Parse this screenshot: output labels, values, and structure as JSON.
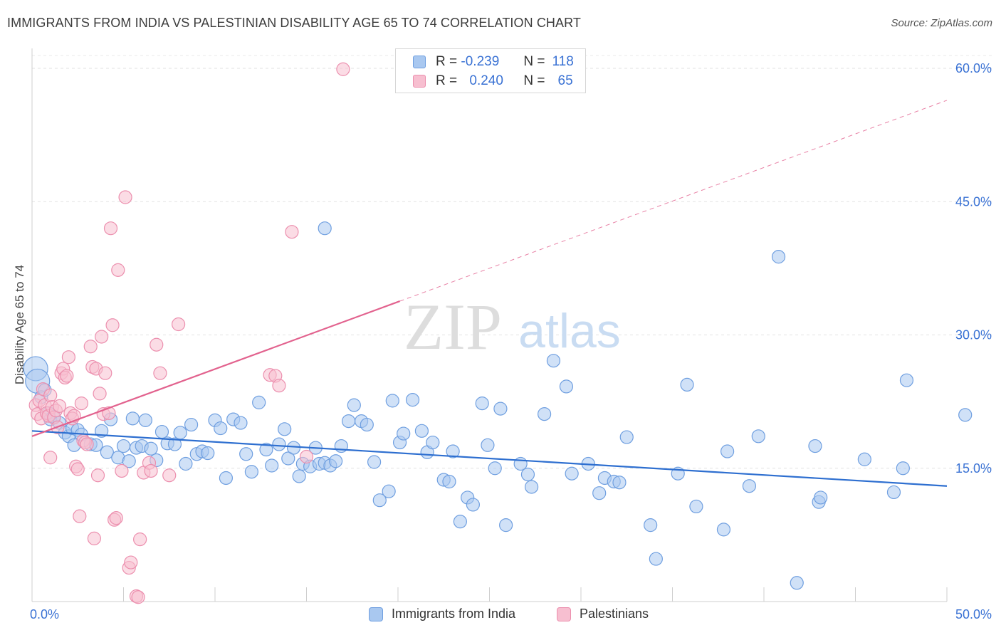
{
  "title": "IMMIGRANTS FROM INDIA VS PALESTINIAN DISABILITY AGE 65 TO 74 CORRELATION CHART",
  "source": "Source: ZipAtlas.com",
  "watermark": {
    "zip": "ZIP",
    "atlas": "atlas"
  },
  "legend": {
    "r_label": "R =",
    "n_label": "N =",
    "rows": [
      {
        "r": "-0.239",
        "n": "118",
        "color": "#a9c8f0",
        "border": "#6f9fe0"
      },
      {
        "r": "0.240",
        "n": "65",
        "color": "#f7bfd0",
        "border": "#ec8fae"
      }
    ]
  },
  "bottom_legend": [
    {
      "label": "Immigrants from India",
      "color": "#a9c8f0",
      "border": "#6f9fe0"
    },
    {
      "label": "Palestinians",
      "color": "#f7bfd0",
      "border": "#ec8fae"
    }
  ],
  "chart_data": {
    "type": "scatter",
    "title": "IMMIGRANTS FROM INDIA VS PALESTINIAN DISABILITY AGE 65 TO 74 CORRELATION CHART",
    "xlabel": "",
    "ylabel": "Disability Age 65 to 74",
    "xlim": [
      0,
      50
    ],
    "ylim": [
      0,
      60
    ],
    "x_tick_labels": [
      "0.0%",
      "50.0%"
    ],
    "y_ticks": [
      15,
      30,
      45,
      60
    ],
    "y_tick_labels": [
      "15.0%",
      "30.0%",
      "45.0%",
      "60.0%"
    ],
    "grid": true,
    "series": [
      {
        "name": "Immigrants from India",
        "color": "#6f9fe0",
        "fill": "#a9c8f0",
        "trend": {
          "x": [
            0,
            50
          ],
          "y": [
            19.2,
            13.0
          ],
          "color": "#2e6fd0"
        },
        "points": [
          [
            0.2,
            26.2
          ],
          [
            0.3,
            24.8
          ],
          [
            0.5,
            23.0
          ],
          [
            0.7,
            23.8
          ],
          [
            0.9,
            21.2
          ],
          [
            1.0,
            20.5
          ],
          [
            1.2,
            20.8
          ],
          [
            1.5,
            20.1
          ],
          [
            1.8,
            19.0
          ],
          [
            2.0,
            18.6
          ],
          [
            2.2,
            19.5
          ],
          [
            2.3,
            17.6
          ],
          [
            2.5,
            19.3
          ],
          [
            2.7,
            18.8
          ],
          [
            3.2,
            17.7
          ],
          [
            3.5,
            17.6
          ],
          [
            3.8,
            19.2
          ],
          [
            4.1,
            16.8
          ],
          [
            4.3,
            20.5
          ],
          [
            4.7,
            16.2
          ],
          [
            5.0,
            17.5
          ],
          [
            5.3,
            15.8
          ],
          [
            5.5,
            20.6
          ],
          [
            5.7,
            17.3
          ],
          [
            6.0,
            17.5
          ],
          [
            6.2,
            20.4
          ],
          [
            6.5,
            17.2
          ],
          [
            6.8,
            15.9
          ],
          [
            7.1,
            19.1
          ],
          [
            7.4,
            17.8
          ],
          [
            7.8,
            17.7
          ],
          [
            8.1,
            19.0
          ],
          [
            8.4,
            15.5
          ],
          [
            8.7,
            19.9
          ],
          [
            9.0,
            16.6
          ],
          [
            9.3,
            16.9
          ],
          [
            9.6,
            16.7
          ],
          [
            10.0,
            20.4
          ],
          [
            10.3,
            19.5
          ],
          [
            10.6,
            13.9
          ],
          [
            11.0,
            20.5
          ],
          [
            11.4,
            20.1
          ],
          [
            11.7,
            16.6
          ],
          [
            12.0,
            14.6
          ],
          [
            12.4,
            22.4
          ],
          [
            12.8,
            17.1
          ],
          [
            13.1,
            15.3
          ],
          [
            13.5,
            17.7
          ],
          [
            13.8,
            19.4
          ],
          [
            14.0,
            16.1
          ],
          [
            14.3,
            17.3
          ],
          [
            14.6,
            14.1
          ],
          [
            14.8,
            15.5
          ],
          [
            15.2,
            15.2
          ],
          [
            15.5,
            17.3
          ],
          [
            15.7,
            15.5
          ],
          [
            16.0,
            15.6
          ],
          [
            16.3,
            15.3
          ],
          [
            16.6,
            15.8
          ],
          [
            16.9,
            17.5
          ],
          [
            17.3,
            20.3
          ],
          [
            17.6,
            22.1
          ],
          [
            18.0,
            20.3
          ],
          [
            18.3,
            19.9
          ],
          [
            18.7,
            15.7
          ],
          [
            19.0,
            11.4
          ],
          [
            19.5,
            12.4
          ],
          [
            19.7,
            22.6
          ],
          [
            20.1,
            17.9
          ],
          [
            20.3,
            18.9
          ],
          [
            20.8,
            22.7
          ],
          [
            21.3,
            19.2
          ],
          [
            21.6,
            16.8
          ],
          [
            21.9,
            17.9
          ],
          [
            22.5,
            13.7
          ],
          [
            22.8,
            13.5
          ],
          [
            23.0,
            16.9
          ],
          [
            23.4,
            9.0
          ],
          [
            23.8,
            11.7
          ],
          [
            24.1,
            10.9
          ],
          [
            24.6,
            22.3
          ],
          [
            24.9,
            17.6
          ],
          [
            25.3,
            15.0
          ],
          [
            25.6,
            21.7
          ],
          [
            25.9,
            8.6
          ],
          [
            26.7,
            15.5
          ],
          [
            27.1,
            14.3
          ],
          [
            27.3,
            12.9
          ],
          [
            28.0,
            21.1
          ],
          [
            28.5,
            27.1
          ],
          [
            29.2,
            24.2
          ],
          [
            29.5,
            14.4
          ],
          [
            30.4,
            15.5
          ],
          [
            31.0,
            12.2
          ],
          [
            31.3,
            13.9
          ],
          [
            31.8,
            13.5
          ],
          [
            32.1,
            13.4
          ],
          [
            32.5,
            18.5
          ],
          [
            33.8,
            8.6
          ],
          [
            34.1,
            4.8
          ],
          [
            35.3,
            14.4
          ],
          [
            35.8,
            24.4
          ],
          [
            36.3,
            10.7
          ],
          [
            37.8,
            8.1
          ],
          [
            38.0,
            16.9
          ],
          [
            39.2,
            13.0
          ],
          [
            39.7,
            18.6
          ],
          [
            40.8,
            38.8
          ],
          [
            41.8,
            2.1
          ],
          [
            42.8,
            17.5
          ],
          [
            43.0,
            11.2
          ],
          [
            43.1,
            11.7
          ],
          [
            45.5,
            16.0
          ],
          [
            47.1,
            12.3
          ],
          [
            47.6,
            15.0
          ],
          [
            47.8,
            24.9
          ],
          [
            51.0,
            21.0
          ],
          [
            16.0,
            42.0
          ]
        ]
      },
      {
        "name": "Palestinians",
        "color": "#ec8fae",
        "fill": "#f7bfd0",
        "trend": {
          "x": [
            0,
            20.1
          ],
          "y": [
            18.6,
            33.8
          ],
          "dash_x": [
            20.1,
            50
          ],
          "dash_y": [
            33.8,
            56.4
          ],
          "color": "#e2628e"
        },
        "points": [
          [
            0.2,
            22.1
          ],
          [
            0.3,
            21.1
          ],
          [
            0.4,
            22.6
          ],
          [
            0.5,
            20.6
          ],
          [
            0.6,
            23.9
          ],
          [
            0.7,
            22.1
          ],
          [
            0.8,
            21.2
          ],
          [
            0.9,
            20.9
          ],
          [
            1.0,
            23.2
          ],
          [
            1.1,
            21.9
          ],
          [
            1.2,
            20.7
          ],
          [
            1.3,
            21.5
          ],
          [
            1.4,
            19.6
          ],
          [
            1.5,
            22.0
          ],
          [
            1.6,
            25.7
          ],
          [
            1.7,
            26.2
          ],
          [
            1.8,
            25.2
          ],
          [
            1.9,
            25.4
          ],
          [
            2.0,
            27.5
          ],
          [
            2.1,
            21.2
          ],
          [
            2.2,
            20.6
          ],
          [
            2.3,
            20.9
          ],
          [
            2.4,
            15.2
          ],
          [
            2.5,
            14.9
          ],
          [
            2.6,
            9.6
          ],
          [
            2.7,
            22.3
          ],
          [
            2.8,
            18.1
          ],
          [
            2.9,
            17.9
          ],
          [
            3.0,
            17.7
          ],
          [
            3.2,
            28.7
          ],
          [
            3.3,
            26.4
          ],
          [
            3.4,
            7.1
          ],
          [
            3.5,
            26.2
          ],
          [
            3.6,
            14.2
          ],
          [
            3.7,
            23.4
          ],
          [
            3.8,
            29.8
          ],
          [
            3.9,
            21.1
          ],
          [
            4.0,
            25.7
          ],
          [
            4.2,
            21.2
          ],
          [
            4.4,
            31.1
          ],
          [
            4.5,
            9.2
          ],
          [
            4.6,
            9.4
          ],
          [
            4.7,
            37.3
          ],
          [
            4.9,
            14.7
          ],
          [
            5.1,
            45.5
          ],
          [
            5.3,
            3.8
          ],
          [
            5.4,
            4.4
          ],
          [
            5.7,
            0.6
          ],
          [
            5.8,
            0.5
          ],
          [
            5.9,
            7.0
          ],
          [
            6.1,
            14.5
          ],
          [
            6.4,
            15.6
          ],
          [
            6.5,
            14.7
          ],
          [
            6.8,
            28.9
          ],
          [
            7.0,
            25.7
          ],
          [
            7.5,
            14.2
          ],
          [
            8.0,
            31.2
          ],
          [
            13.0,
            25.5
          ],
          [
            13.3,
            25.4
          ],
          [
            13.5,
            24.3
          ],
          [
            14.2,
            41.6
          ],
          [
            15.0,
            16.3
          ],
          [
            17.0,
            59.9
          ],
          [
            4.3,
            42.0
          ],
          [
            1.0,
            16.2
          ]
        ]
      }
    ]
  }
}
